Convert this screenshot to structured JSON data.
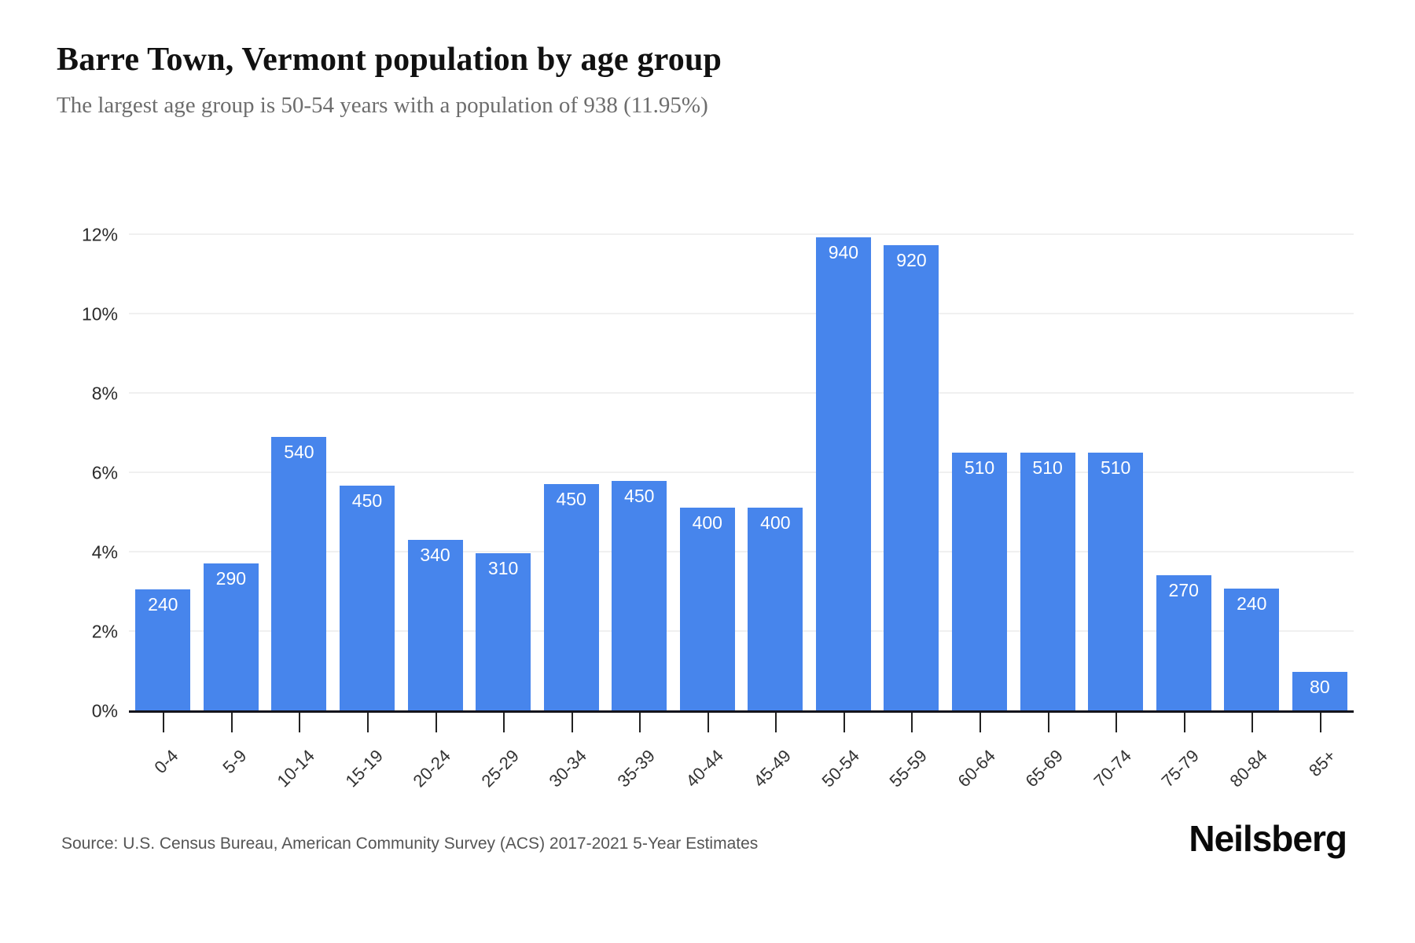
{
  "header": {
    "title": "Barre Town, Vermont population by age group",
    "subtitle": "The largest age group is 50-54 years with a population of 938 (11.95%)"
  },
  "chart_data": {
    "type": "bar",
    "title": "Barre Town, Vermont population by age group",
    "categories": [
      "0-4",
      "5-9",
      "10-14",
      "15-19",
      "20-24",
      "25-29",
      "30-34",
      "35-39",
      "40-44",
      "45-49",
      "50-54",
      "55-59",
      "60-64",
      "65-69",
      "70-74",
      "75-79",
      "80-84",
      "85+"
    ],
    "values": [
      240,
      290,
      540,
      450,
      340,
      310,
      450,
      450,
      400,
      400,
      940,
      920,
      510,
      510,
      510,
      270,
      240,
      80
    ],
    "bar_labels": [
      "240",
      "290",
      "540",
      "450",
      "340",
      "310",
      "450",
      "450",
      "400",
      "400",
      "940",
      "920",
      "510",
      "510",
      "510",
      "270",
      "240",
      "80"
    ],
    "percentages": [
      3.06,
      3.73,
      6.91,
      5.68,
      4.31,
      3.98,
      5.73,
      5.8,
      5.13,
      5.13,
      11.95,
      11.75,
      6.52,
      6.52,
      6.52,
      3.42,
      3.08,
      1.0
    ],
    "xlabel": "",
    "ylabel": "",
    "ylim": [
      0,
      12
    ],
    "yticks": [
      0,
      2,
      4,
      6,
      8,
      10,
      12
    ],
    "ytick_labels": [
      "0%",
      "2%",
      "4%",
      "6%",
      "8%",
      "10%",
      "12%"
    ],
    "grid": "horizontal",
    "legend_position": "none",
    "bar_color": "#4785EC",
    "bar_label_color": "#ffffff"
  },
  "footer": {
    "source": "Source: U.S. Census Bureau, American Community Survey (ACS) 2017-2021 5-Year Estimates",
    "logo": "Neilsberg"
  }
}
